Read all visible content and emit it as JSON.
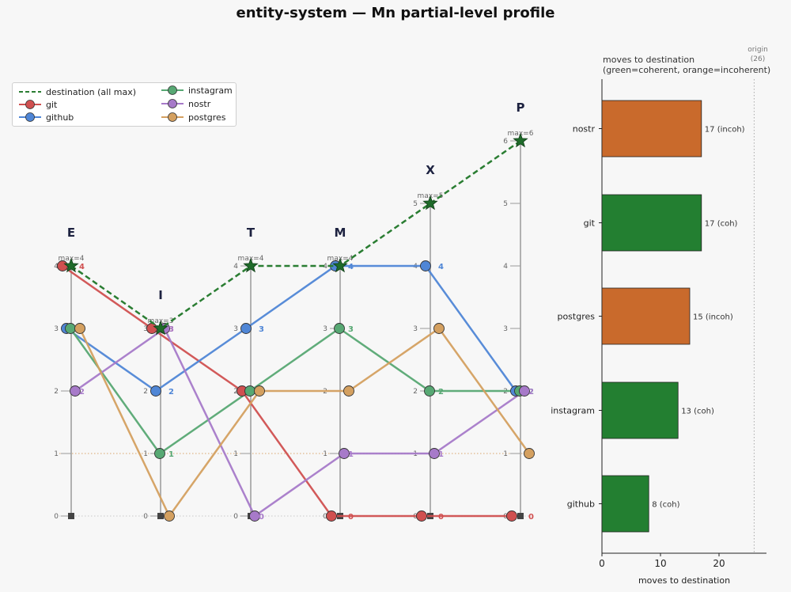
{
  "title": "entity-system — Mn partial-level profile",
  "colors": {
    "destination": "#2a7d32",
    "git": "#d05050",
    "github": "#4f86d6",
    "instagram": "#57a873",
    "nostr": "#a77ac9",
    "postgres": "#d4a060",
    "coherent": "#237f31",
    "incoherent": "#c96a2c"
  },
  "chart_data": [
    {
      "type": "line",
      "axes": [
        "E",
        "I",
        "T",
        "M",
        "X",
        "P"
      ],
      "axis_max": [
        4,
        3,
        4,
        4,
        5,
        6
      ],
      "axis_max_labels": [
        "max=4",
        "max=3",
        "max=4",
        "max=4",
        "max=5",
        "max=6"
      ],
      "ylim": [
        0,
        6
      ],
      "series": [
        {
          "name": "destination (all max)",
          "key": "destination",
          "values": [
            4,
            3,
            4,
            4,
            5,
            6
          ]
        },
        {
          "name": "git",
          "key": "git",
          "values": [
            4,
            3,
            2,
            0,
            0,
            0
          ]
        },
        {
          "name": "github",
          "key": "github",
          "values": [
            3,
            2,
            3,
            4,
            4,
            2
          ]
        },
        {
          "name": "instagram",
          "key": "instagram",
          "values": [
            3,
            1,
            2,
            3,
            2,
            2
          ]
        },
        {
          "name": "nostr",
          "key": "nostr",
          "values": [
            2,
            3,
            0,
            1,
            1,
            2
          ]
        },
        {
          "name": "postgres",
          "key": "postgres",
          "values": [
            3,
            0,
            2,
            2,
            3,
            1
          ]
        }
      ],
      "legend": {
        "location": "upper-left",
        "columns": 2
      }
    },
    {
      "type": "bar",
      "orientation": "horizontal",
      "title": "moves to destination",
      "subtitle": "(green=coherent, orange=incoherent)",
      "xlabel": "moves to destination",
      "xlim": [
        0,
        28
      ],
      "xticks": [
        0,
        10,
        20
      ],
      "categories": [
        "nostr",
        "git",
        "postgres",
        "instagram",
        "github"
      ],
      "values": [
        17,
        17,
        15,
        13,
        8
      ],
      "coherence": [
        "incoherent",
        "coherent",
        "incoherent",
        "coherent",
        "coherent"
      ],
      "bar_labels": [
        "17  (incoh)",
        "17  (coh)",
        "15  (incoh)",
        "13  (coh)",
        "8  (coh)"
      ],
      "reference_line": {
        "label": "origin",
        "value_label": "(26)",
        "value": 26
      }
    }
  ]
}
